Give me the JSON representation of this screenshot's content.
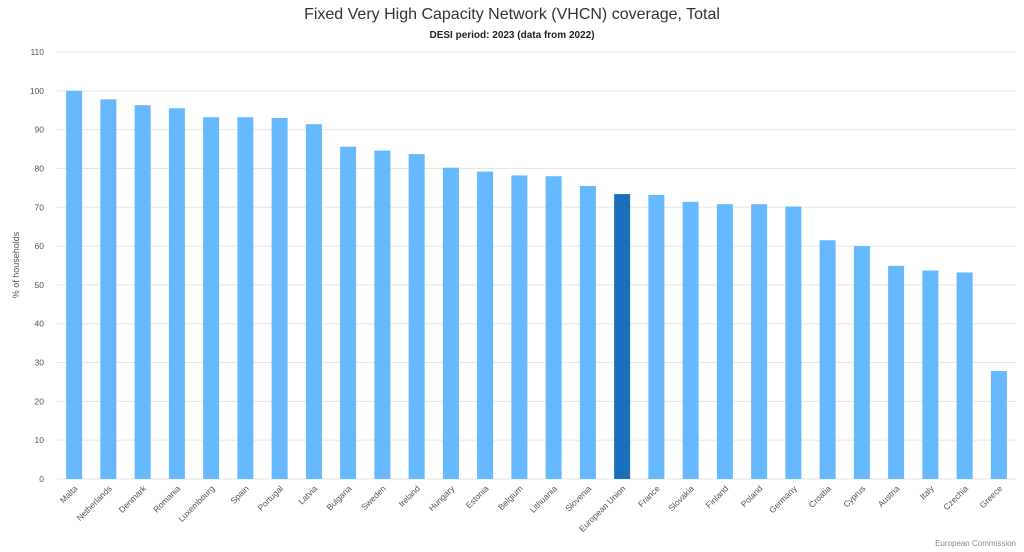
{
  "chart_data": {
    "type": "bar",
    "title": "Fixed Very High Capacity Network (VHCN) coverage, Total",
    "subtitle": "DESI period: 2023 (data from 2022)",
    "ylabel": "% of households",
    "xlabel": "",
    "ylim": [
      0,
      110
    ],
    "yticks": [
      0,
      10,
      20,
      30,
      40,
      50,
      60,
      70,
      80,
      90,
      100,
      110
    ],
    "grid": true,
    "categories": [
      "Malta",
      "Netherlands",
      "Denmark",
      "Romania",
      "Luxembourg",
      "Spain",
      "Portugal",
      "Latvia",
      "Bulgaria",
      "Sweden",
      "Ireland",
      "Hungary",
      "Estonia",
      "Belgium",
      "Lithuania",
      "Slovenia",
      "European Union",
      "France",
      "Slovakia",
      "Finland",
      "Poland",
      "Germany",
      "Croatia",
      "Cyprus",
      "Austria",
      "Italy",
      "Czechia",
      "Greece"
    ],
    "values": [
      100,
      97.8,
      96.3,
      95.5,
      93.2,
      93.2,
      93.0,
      91.4,
      85.6,
      84.6,
      83.7,
      80.2,
      79.2,
      78.2,
      78.0,
      75.5,
      73.4,
      73.2,
      71.4,
      70.8,
      70.8,
      70.2,
      61.5,
      60.0,
      54.9,
      53.7,
      53.2,
      27.8
    ],
    "highlight": "European Union",
    "colors": {
      "bar": "#66b8ff",
      "highlight": "#1a6fba",
      "grid": "#e6e6e6"
    }
  },
  "credits": "European Commission"
}
